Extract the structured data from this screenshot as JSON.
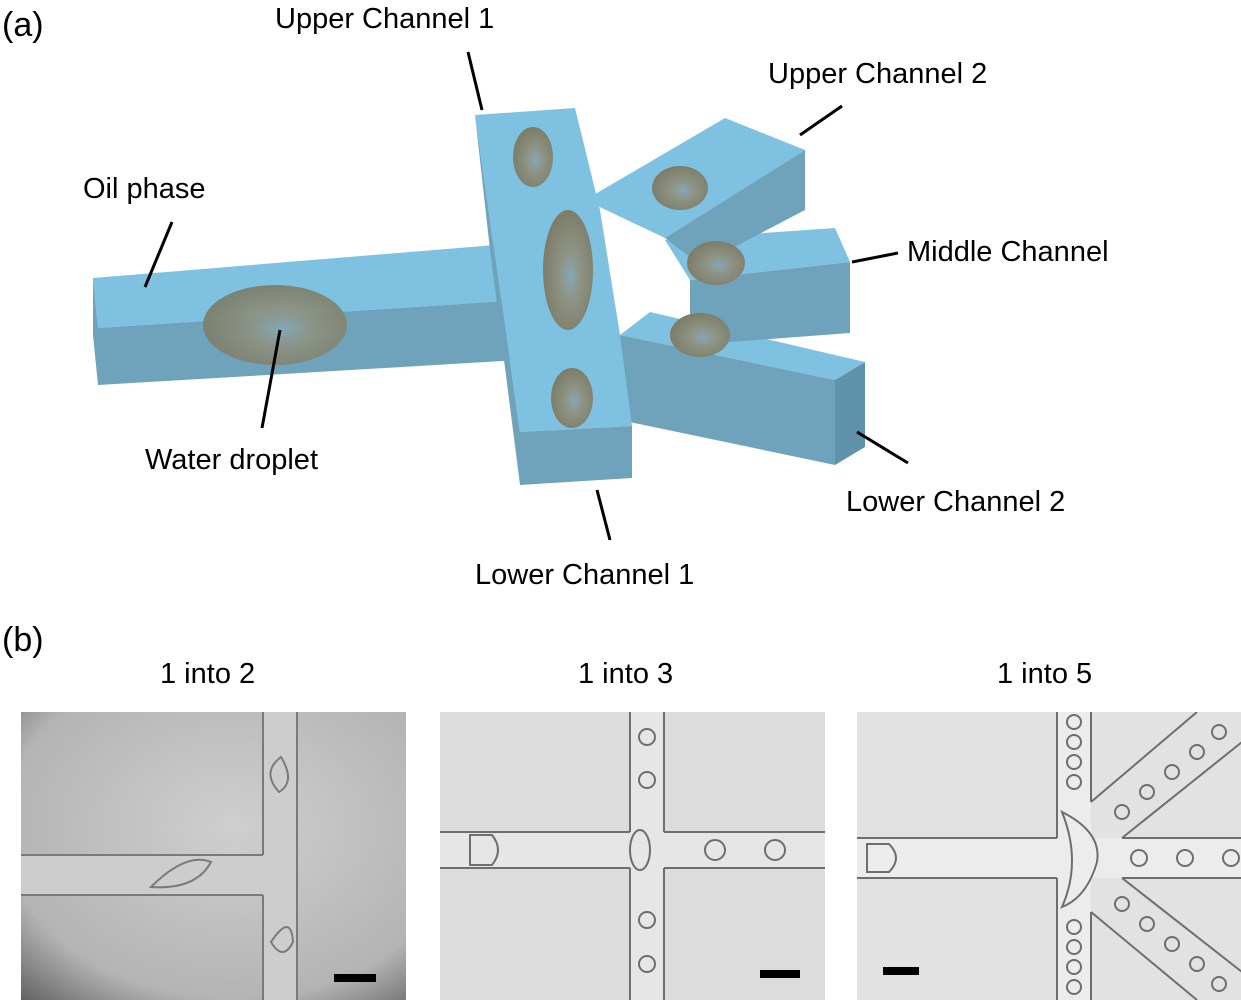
{
  "panel_a": {
    "label": "(a)",
    "annotations": {
      "upper_channel_1": "Upper Channel 1",
      "upper_channel_2": "Upper Channel 2",
      "oil_phase": "Oil phase",
      "middle_channel": "Middle Channel",
      "water_droplet": "Water droplet",
      "lower_channel_2": "Lower Channel 2",
      "lower_channel_1": "Lower Channel 1"
    },
    "colors": {
      "channel_top": "#7ec1e0",
      "channel_side": "#6fa3bc",
      "channel_end": "#5f93ab",
      "droplet": "#8c8c78"
    }
  },
  "panel_b": {
    "label": "(b)",
    "images": [
      {
        "title": "1 into 2",
        "icon": "micrograph-1-into-2-icon"
      },
      {
        "title": "1 into 3",
        "icon": "micrograph-1-into-3-icon"
      },
      {
        "title": "1 into 5",
        "icon": "micrograph-1-into-5-icon"
      }
    ]
  }
}
